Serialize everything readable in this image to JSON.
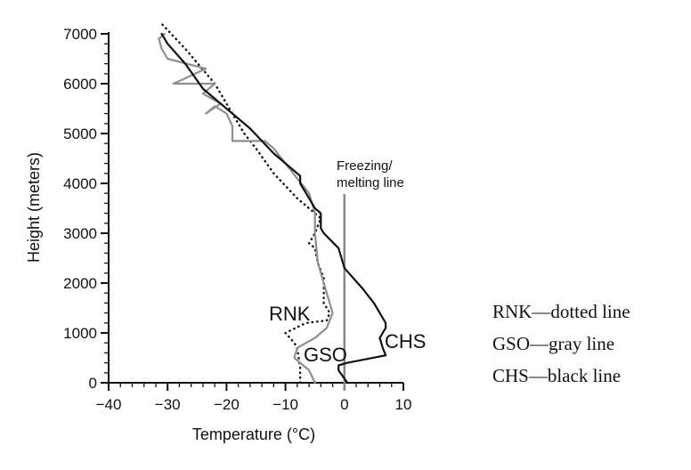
{
  "chart_data": {
    "type": "line",
    "xlabel": "Temperature (°C)",
    "ylabel": "Height (meters)",
    "xlim": [
      -40,
      10
    ],
    "ylim": [
      0,
      7000
    ],
    "x_ticks": [
      -40,
      -30,
      -20,
      -10,
      0,
      10
    ],
    "y_ticks": [
      0,
      1000,
      2000,
      3000,
      4000,
      5000,
      6000,
      7000
    ],
    "grid": false,
    "reference_line": {
      "x": 0,
      "label_line1": "Freezing/",
      "label_line2": "melting line",
      "color": "#8a8a8a"
    },
    "series": [
      {
        "name": "RNK",
        "style": "dotted",
        "color": "#111111",
        "points": [
          [
            -7.5,
            0
          ],
          [
            -7.5,
            300
          ],
          [
            -8,
            700
          ],
          [
            -8.5,
            800
          ],
          [
            -10,
            1000
          ],
          [
            -6.5,
            1200
          ],
          [
            -3,
            1250
          ],
          [
            -2.5,
            1400
          ],
          [
            -3.5,
            1600
          ],
          [
            -3.5,
            2100
          ],
          [
            -4.5,
            2400
          ],
          [
            -5,
            2700
          ],
          [
            -6,
            2800
          ],
          [
            -5,
            3000
          ],
          [
            -4,
            3300
          ],
          [
            -8,
            3700
          ],
          [
            -12,
            4200
          ],
          [
            -15,
            4700
          ],
          [
            -17,
            5000
          ],
          [
            -19,
            5400
          ],
          [
            -22,
            6000
          ],
          [
            -27,
            6700
          ],
          [
            -31,
            7200
          ]
        ]
      },
      {
        "name": "GSO",
        "style": "solid",
        "color": "#8f8f8f",
        "points": [
          [
            -5,
            0
          ],
          [
            -6,
            250
          ],
          [
            -8.5,
            500
          ],
          [
            -8,
            700
          ],
          [
            -5,
            900
          ],
          [
            -3,
            1100
          ],
          [
            -2,
            1400
          ],
          [
            -3,
            1800
          ],
          [
            -4.5,
            2400
          ],
          [
            -5,
            3000
          ],
          [
            -5,
            3400
          ],
          [
            -6,
            3800
          ],
          [
            -8,
            4100
          ],
          [
            -12,
            4700
          ],
          [
            -13.5,
            4850
          ],
          [
            -19,
            4850
          ],
          [
            -19,
            5150
          ],
          [
            -20,
            5400
          ],
          [
            -22,
            5550
          ],
          [
            -23.5,
            5400
          ],
          [
            -21,
            5600
          ],
          [
            -24,
            5800
          ],
          [
            -22,
            6000
          ],
          [
            -29,
            6000
          ],
          [
            -23.5,
            6300
          ],
          [
            -30,
            6500
          ],
          [
            -31,
            6700
          ],
          [
            -31.5,
            6900
          ],
          [
            -30.5,
            7000
          ]
        ]
      },
      {
        "name": "CHS",
        "style": "solid",
        "color": "#111111",
        "points": [
          [
            0.5,
            0
          ],
          [
            -1,
            250
          ],
          [
            -1,
            350
          ],
          [
            0.5,
            400
          ],
          [
            7,
            550
          ],
          [
            6.5,
            700
          ],
          [
            6,
            900
          ],
          [
            7,
            1100
          ],
          [
            7,
            1200
          ],
          [
            5,
            1600
          ],
          [
            3,
            1900
          ],
          [
            1.5,
            2100
          ],
          [
            0,
            2300
          ],
          [
            -0.5,
            2500
          ],
          [
            -1,
            2700
          ],
          [
            -3.5,
            3000
          ],
          [
            -4,
            3100
          ],
          [
            -4,
            3300
          ],
          [
            -4,
            3400
          ],
          [
            -5,
            3500
          ],
          [
            -6.5,
            3800
          ],
          [
            -7.5,
            4000
          ],
          [
            -7.5,
            4150
          ],
          [
            -8,
            4200
          ],
          [
            -12,
            4600
          ],
          [
            -16,
            5100
          ],
          [
            -24,
            5900
          ],
          [
            -27,
            6400
          ],
          [
            -30,
            6800
          ],
          [
            -31,
            7000
          ]
        ]
      }
    ],
    "series_labels": [
      "RNK",
      "GSO",
      "CHS"
    ],
    "legend": [
      "RNK—dotted line",
      "GSO—gray line",
      "CHS—black line"
    ],
    "legend_placement": "right"
  }
}
